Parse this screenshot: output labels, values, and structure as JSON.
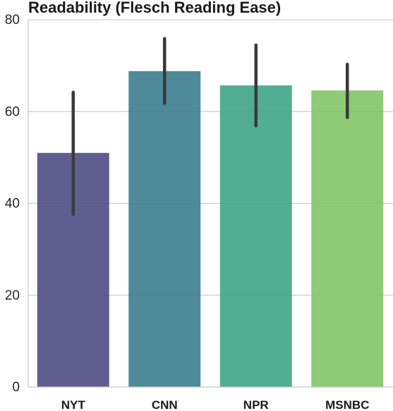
{
  "chart_data": {
    "type": "bar",
    "title": "Readability (Flesch Reading Ease)",
    "xlabel": "",
    "ylabel": "",
    "categories": [
      "NYT",
      "CNN",
      "NPR",
      "MSNBC"
    ],
    "values": [
      51,
      68.8,
      65.7,
      64.6
    ],
    "error_low": [
      37.6,
      61.8,
      56.9,
      58.7
    ],
    "error_high": [
      64.2,
      75.9,
      74.5,
      70.3
    ],
    "ylim": [
      0,
      80
    ],
    "yticks": [
      0,
      20,
      40,
      60,
      80
    ],
    "ytick_labels": [
      "0",
      "20",
      "40",
      "60",
      "80"
    ],
    "grid": "horizontal",
    "legend": "none",
    "colors": [
      "#4a4882",
      "#357a8c",
      "#3aa384",
      "#7dc462"
    ],
    "errorbar_color": "#3a3a3a",
    "grid_color": "#cccccc",
    "axis_color": "#cccccc"
  }
}
